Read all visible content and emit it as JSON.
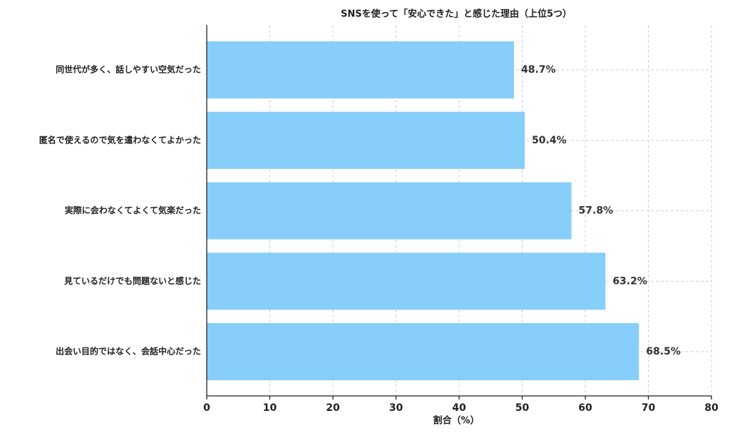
{
  "chart_data": {
    "type": "barh",
    "title": "SNSを使って「安心できた」と感じた理由（上位5つ）",
    "xlabel": "割合（%）",
    "categories": [
      "同世代が多く、話しやすい空気だった",
      "匿名で使えるので気を遣わなくてよかった",
      "実際に会わなくてよくて気楽だった",
      "見ているだけでも問題ないと感じた",
      "出会い目的ではなく、会話中心だった"
    ],
    "values": [
      48.7,
      50.4,
      57.8,
      63.2,
      68.5
    ],
    "value_labels": [
      "48.7%",
      "50.4%",
      "57.8%",
      "63.2%",
      "68.5%"
    ],
    "color": "#87cefa",
    "xlim": [
      0,
      80
    ],
    "xticks": [
      0,
      10,
      20,
      30,
      40,
      50,
      60,
      70,
      80
    ],
    "grid": true
  }
}
